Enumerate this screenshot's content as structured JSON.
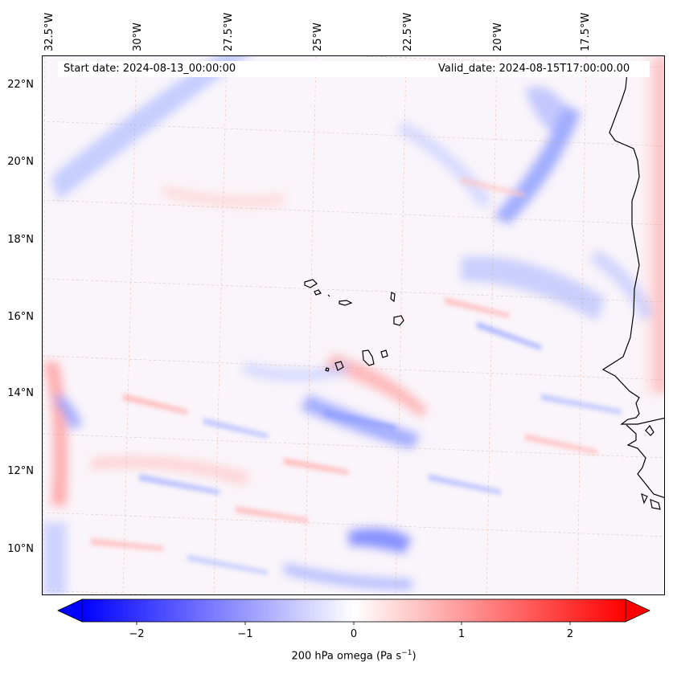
{
  "map": {
    "start_date": "Start date: 2024-08-13_00:00:00",
    "valid_date": "Valid_date: 2024-08-15T17:00:00.00",
    "longitude_labels": [
      "32.5°W",
      "30°W",
      "27.5°W",
      "25°W",
      "22.5°W",
      "20°W",
      "17.5°W"
    ],
    "latitude_labels": [
      "22°N",
      "20°N",
      "18°N",
      "16°N",
      "14°N",
      "12°N",
      "10°N"
    ],
    "field": "200 hPa omega",
    "land_features": [
      "Cabo Verde islands",
      "West African coastline"
    ]
  },
  "colorbar": {
    "ticks": [
      "−2",
      "−1",
      "0",
      "1",
      "2"
    ],
    "label_main": "200 hPa omega (Pa s",
    "label_sup": "−1",
    "label_end": ")",
    "range": [
      -2.7,
      2.7
    ],
    "colors": {
      "negative": "#0000ff",
      "zero": "#ffffff",
      "positive": "#ff0000"
    }
  }
}
